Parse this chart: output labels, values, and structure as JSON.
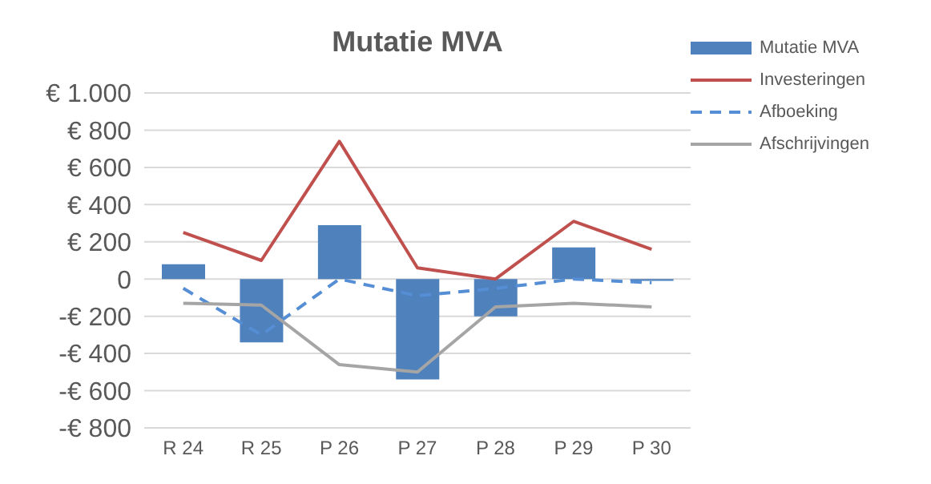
{
  "chart_data": {
    "type": "bar",
    "title": "Mutatie MVA",
    "categories": [
      "R 24",
      "R 25",
      "P 26",
      "P 27",
      "P 28",
      "P 29",
      "P 30"
    ],
    "series": [
      {
        "name": "Mutatie MVA",
        "color": "#4f81bd",
        "values": [
          80,
          -340,
          290,
          -540,
          -200,
          170,
          -10
        ]
      },
      {
        "name": "Investeringen",
        "type": "line",
        "color": "#c0504d",
        "values": [
          250,
          100,
          740,
          60,
          0,
          310,
          160
        ]
      },
      {
        "name": "Afboeking",
        "type": "line",
        "line_style": "dashed",
        "color": "#558ed5",
        "values": [
          -50,
          -300,
          0,
          -90,
          -50,
          0,
          -20
        ]
      },
      {
        "name": "Afschrijvingen",
        "type": "line",
        "color": "#a5a5a5",
        "values": [
          -130,
          -140,
          -460,
          -500,
          -150,
          -130,
          -150
        ]
      }
    ],
    "ylim": [
      -800,
      1000
    ],
    "yticks": [
      {
        "value": -800,
        "label": "-€ 800"
      },
      {
        "value": -600,
        "label": "-€ 600"
      },
      {
        "value": -400,
        "label": "-€ 400"
      },
      {
        "value": -200,
        "label": "-€ 200"
      },
      0,
      {
        "value": 200,
        "label": "€ 200"
      },
      {
        "value": 400,
        "label": "€ 400"
      },
      {
        "value": 600,
        "label": "€ 600"
      },
      {
        "value": 800,
        "label": "€ 800"
      },
      {
        "value": 1000,
        "label": "€ 1.000"
      }
    ],
    "grid": "y",
    "legend": "top right",
    "marker": "none"
  }
}
